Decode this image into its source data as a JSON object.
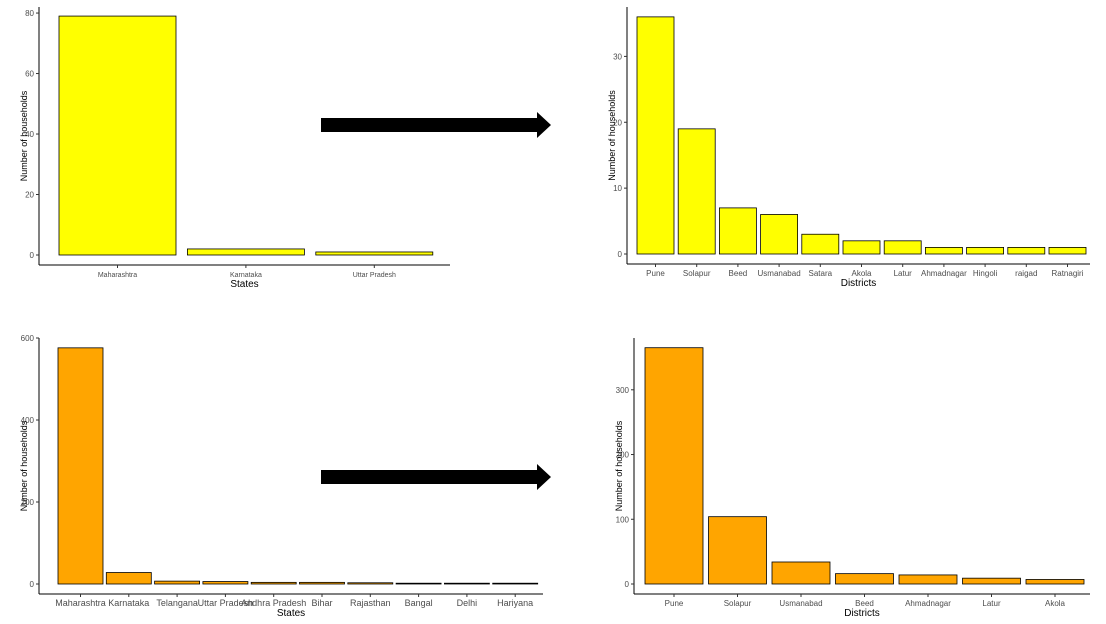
{
  "chart_data": [
    {
      "type": "bar",
      "title": "",
      "xlabel": "States",
      "ylabel": "Number of households",
      "categories": [
        "Maharashtra",
        "Karnataka",
        "Uttar Pradesh"
      ],
      "values": [
        79,
        2,
        1
      ],
      "ylim": [
        0,
        82
      ],
      "yticks": [
        0,
        20,
        40,
        60,
        80
      ],
      "color": "#FFFF00",
      "grid": false
    },
    {
      "type": "bar",
      "title": "",
      "xlabel": "Districts",
      "ylabel": "Number of households",
      "categories": [
        "Pune",
        "Solapur",
        "Beed",
        "Usmanabad",
        "Satara",
        "Akola",
        "Latur",
        "Ahmadnagar",
        "Hingoli",
        "raigad",
        "Ratnagiri"
      ],
      "values": [
        36,
        19,
        7,
        6,
        3,
        2,
        2,
        1,
        1,
        1,
        1
      ],
      "ylim": [
        0,
        37.5
      ],
      "yticks": [
        0,
        10,
        20,
        30
      ],
      "color": "#FFFF00",
      "grid": false
    },
    {
      "type": "bar",
      "title": "",
      "xlabel": "States",
      "ylabel": "Number of households",
      "categories": [
        "Maharashtra",
        "Karnataka",
        "Telangana",
        "Uttar Pradesh",
        "Andhra Pradesh",
        "Bihar",
        "Rajasthan",
        "Bangal",
        "Delhi",
        "Hariyana"
      ],
      "values": [
        576,
        28,
        7,
        6,
        4,
        4,
        3,
        1,
        1,
        1
      ],
      "ylim": [
        0,
        600
      ],
      "yticks": [
        0,
        200,
        400,
        600
      ],
      "color": "#FFA500",
      "grid": false
    },
    {
      "type": "bar",
      "title": "",
      "xlabel": "Districts",
      "ylabel": "Number of households",
      "categories": [
        "Pune",
        "Solapur",
        "Usmanabad",
        "Beed",
        "Ahmadnagar",
        "Latur",
        "Akola"
      ],
      "values": [
        365,
        104,
        34,
        16,
        14,
        9,
        7
      ],
      "ylim": [
        0,
        380
      ],
      "yticks": [
        0,
        100,
        200,
        300
      ],
      "color": "#FFA500",
      "grid": false
    }
  ],
  "arrows": [
    {
      "name": "top-arrow",
      "color": "#000000"
    },
    {
      "name": "bottom-arrow",
      "color": "#000000"
    }
  ]
}
